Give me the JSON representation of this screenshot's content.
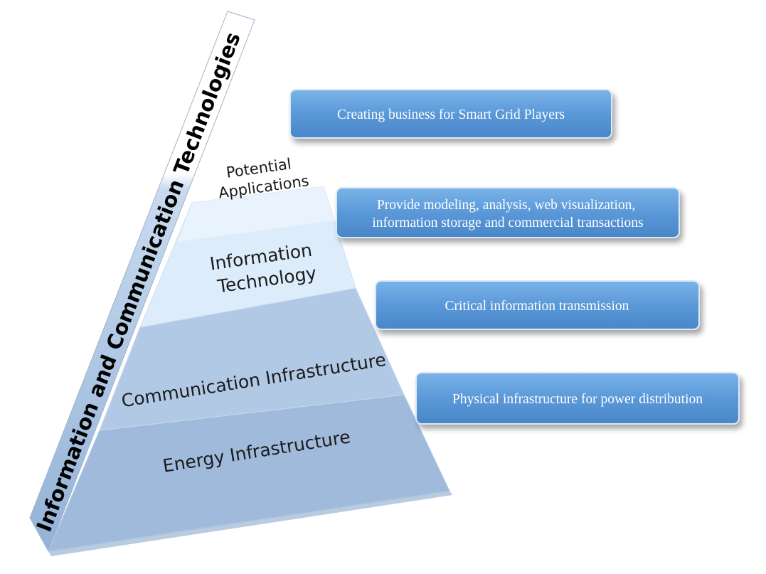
{
  "side_band": {
    "label": "Information and Communication Technologies"
  },
  "tiers": [
    {
      "id": "potential-applications",
      "lines": [
        "Potential",
        "Applications"
      ]
    },
    {
      "id": "information-technology",
      "lines": [
        "Information",
        "Technology"
      ]
    },
    {
      "id": "communication-infrastructure",
      "lines": [
        "Communication Infrastructure"
      ]
    },
    {
      "id": "energy-infrastructure",
      "lines": [
        "Energy Infrastructure"
      ]
    }
  ],
  "callouts": [
    {
      "id": "creating-business",
      "lines": [
        "Creating business for Smart Grid Players"
      ]
    },
    {
      "id": "modeling-analysis",
      "lines": [
        "Provide modeling, analysis, web visualization,",
        "information storage and commercial transactions"
      ]
    },
    {
      "id": "critical-transmission",
      "lines": [
        "Critical information transmission"
      ]
    },
    {
      "id": "physical-infrastructure",
      "lines": [
        "Physical  infrastructure for power distribution"
      ]
    }
  ],
  "colors": {
    "callout_fill": "#5b9bd5",
    "callout_border": "#3f7fc0",
    "tier_energy": "#9db8d8",
    "tier_communication": "#b3cbe6",
    "tier_information": "#d9ebf9",
    "side_band_blue": "#a8c2e0"
  }
}
